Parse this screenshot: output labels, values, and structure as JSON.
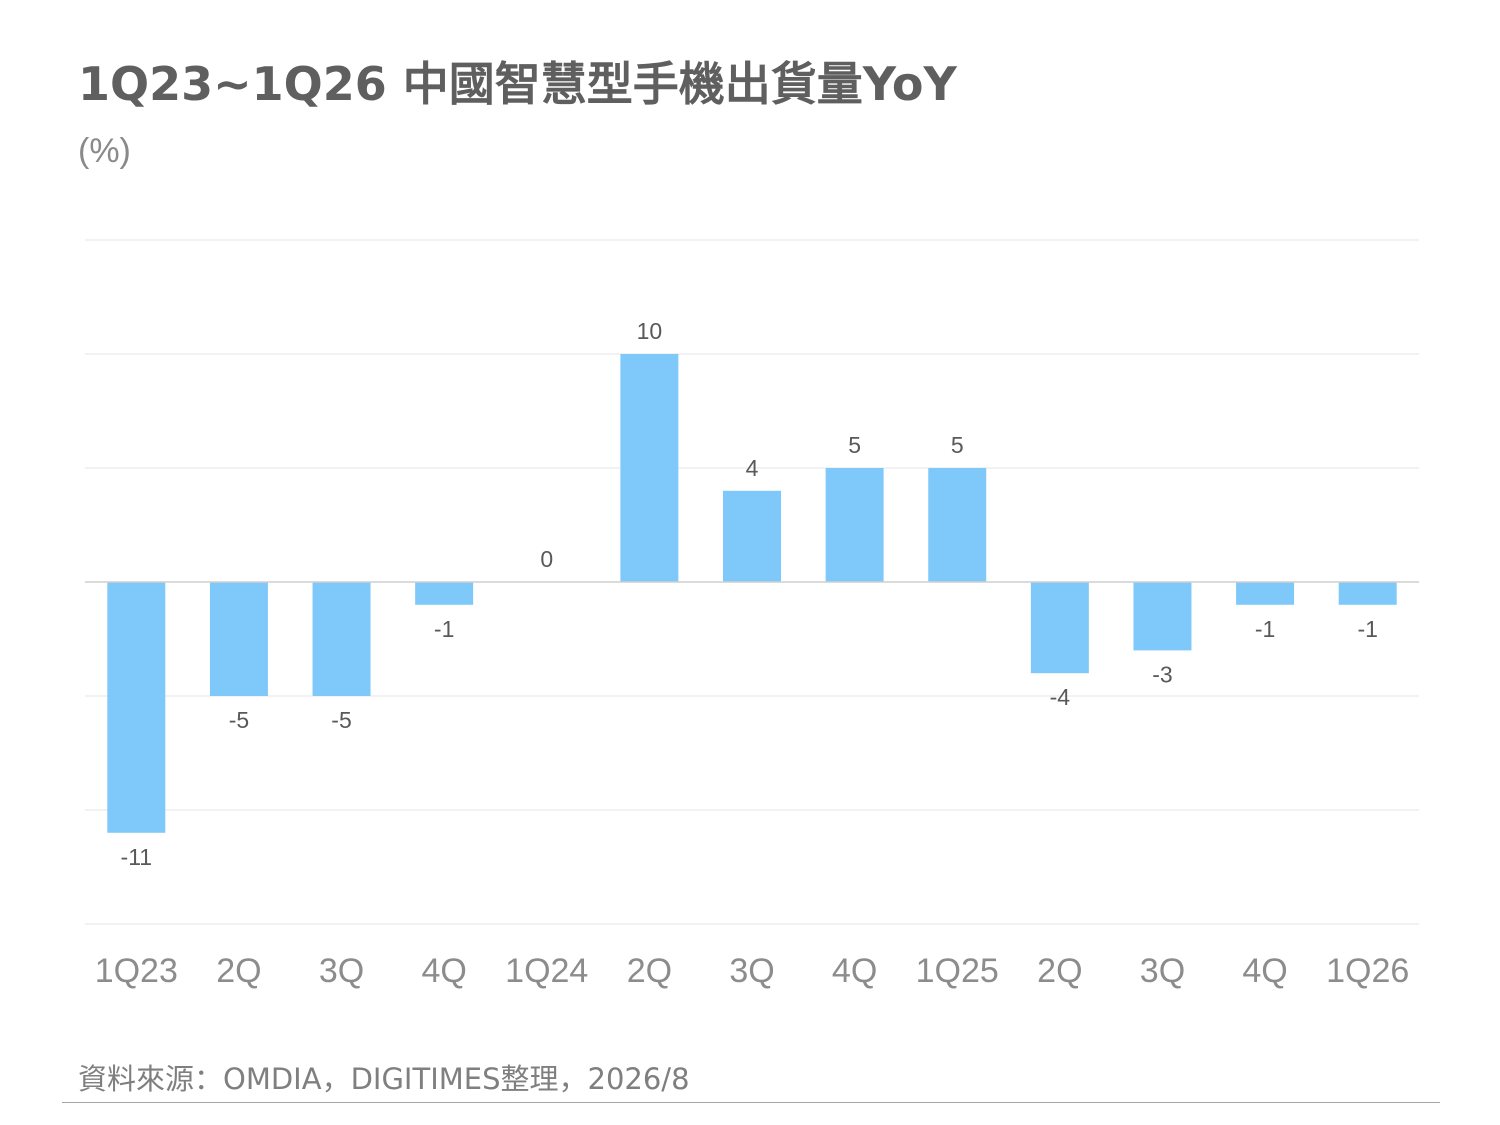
{
  "chart_data": {
    "type": "bar",
    "title": "1Q23~1Q26 中國智慧型手機出貨量YoY",
    "unit_label": "(%)",
    "categories": [
      "1Q23",
      "2Q",
      "3Q",
      "4Q",
      "1Q24",
      "2Q",
      "3Q",
      "4Q",
      "1Q25",
      "2Q",
      "3Q",
      "4Q",
      "1Q26"
    ],
    "values": [
      -11,
      -5,
      -5,
      -1,
      0,
      10,
      4,
      5,
      5,
      -4,
      -3,
      -1,
      -1
    ],
    "data_labels": [
      "-11",
      "-5",
      "-5",
      "-1",
      "0",
      "10",
      "4",
      "5",
      "5",
      "-4",
      "-3",
      "-1",
      "-1"
    ],
    "ylim": [
      -15,
      15
    ],
    "gridlines": true,
    "bar_color": "#7fc9fa",
    "source": "資料來源：OMDIA，DIGITIMES整理，2026/8"
  }
}
